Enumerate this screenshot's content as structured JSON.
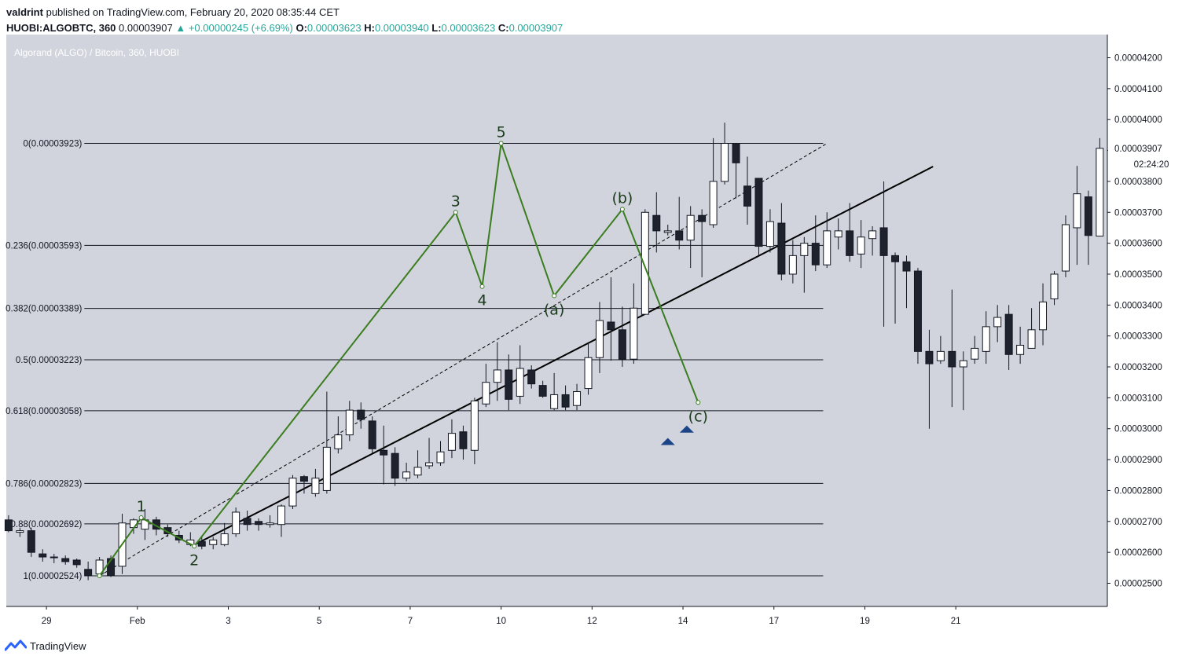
{
  "header": {
    "publisher": "valdrint",
    "published_text": "published on TradingView.com, February 20, 2020 08:35:44 CET",
    "symbol": "HUOBI:ALGOBTC, 360",
    "last": "0.00003907",
    "change": "+0.00000245 (+6.69%)",
    "o_label": "O:",
    "o": "0.00003623",
    "h_label": "H:",
    "h": "0.00003940",
    "l_label": "L:",
    "l": "0.00003623",
    "c_label": "C:",
    "c": "0.00003907"
  },
  "footer": {
    "brand": "TradingView"
  },
  "colors": {
    "background": "#d1d4dc",
    "up_candle": "#ffffff",
    "down_candle": "#1e222d",
    "wave": "#3a7d1f",
    "trendline": "#000000",
    "arrow": "#1c4587",
    "accent": "#26a69a"
  },
  "chart_data": {
    "type": "candlestick",
    "title": "Algorand (ALGO) / Bitcoin, 360, HUOBI",
    "price_labels": [
      "0.00004200",
      "0.00004100",
      "0.00004000",
      "0.00003900",
      "0.00003800",
      "0.00003700",
      "0.00003600",
      "0.00003500",
      "0.00003400",
      "0.00003300",
      "0.00003200",
      "0.00003100",
      "0.00003000",
      "0.00002900",
      "0.00002800",
      "0.00002700",
      "0.00002600",
      "0.00002500"
    ],
    "y_range": [
      2.425e-05,
      4.275e-05
    ],
    "date_labels": [
      {
        "label": "29",
        "t": 0
      },
      {
        "label": "Feb",
        "t": 12
      },
      {
        "label": "3",
        "t": 24
      },
      {
        "label": "5",
        "t": 36
      },
      {
        "label": "7",
        "t": 48
      },
      {
        "label": "10",
        "t": 60
      },
      {
        "label": "12",
        "t": 72
      },
      {
        "label": "14",
        "t": 84
      },
      {
        "label": "17",
        "t": 96
      },
      {
        "label": "19",
        "t": 108
      },
      {
        "label": "21",
        "t": 120
      }
    ],
    "x_range": [
      -5.3,
      140
    ],
    "current_price": "0.00003907",
    "countdown": "02:24:20",
    "fib_levels": [
      {
        "label": "0(0.00003923)",
        "price": 3.923e-05
      },
      {
        "label": "0.236(0.00003593)",
        "price": 3.593e-05
      },
      {
        "label": "0.382(0.00003389)",
        "price": 3.389e-05
      },
      {
        "label": "0.5(0.00003223)",
        "price": 3.223e-05
      },
      {
        "label": "0.618(0.00003058)",
        "price": 3.058e-05
      },
      {
        "label": "0.786(0.00002823)",
        "price": 2.823e-05
      },
      {
        "label": "0.88(0.00002692)",
        "price": 2.692e-05
      },
      {
        "label": "1(0.00002524)",
        "price": 2.524e-05
      }
    ],
    "fib_x_range": [
      5,
      102.5
    ],
    "candles": [
      [
        -5,
        2705,
        2670,
        2720,
        2665
      ],
      [
        -3.5,
        2665,
        2670,
        2680,
        2650
      ],
      [
        -2,
        2670,
        2600,
        2680,
        2585
      ],
      [
        -0.5,
        2595,
        2585,
        2610,
        2570
      ],
      [
        1,
        2585,
        2585,
        2595,
        2565
      ],
      [
        2.5,
        2580,
        2570,
        2590,
        2560
      ],
      [
        4,
        2575,
        2560,
        2580,
        2550
      ],
      [
        5.5,
        2545,
        2525,
        2570,
        2510
      ],
      [
        7,
        2530,
        2575,
        2585,
        2520
      ],
      [
        8.5,
        2580,
        2525,
        2590,
        2520
      ],
      [
        10,
        2555,
        2695,
        2725,
        2530
      ],
      [
        11.5,
        2680,
        2705,
        2710,
        2660
      ],
      [
        13,
        2675,
        2705,
        2740,
        2640
      ],
      [
        14.5,
        2705,
        2675,
        2715,
        2655
      ],
      [
        16,
        2680,
        2660,
        2690,
        2650
      ],
      [
        17.5,
        2655,
        2640,
        2670,
        2630
      ],
      [
        19,
        2625,
        2640,
        2665,
        2620
      ],
      [
        20.5,
        2635,
        2620,
        2650,
        2610
      ],
      [
        22,
        2625,
        2640,
        2650,
        2610
      ],
      [
        23.5,
        2625,
        2660,
        2695,
        2620
      ],
      [
        25,
        2660,
        2730,
        2745,
        2650
      ],
      [
        26.5,
        2710,
        2690,
        2735,
        2670
      ],
      [
        28,
        2700,
        2690,
        2710,
        2670
      ],
      [
        29.5,
        2690,
        2695,
        2720,
        2680
      ],
      [
        31,
        2690,
        2750,
        2755,
        2650
      ],
      [
        32.5,
        2750,
        2840,
        2850,
        2740
      ],
      [
        34,
        2845,
        2830,
        2850,
        2790
      ],
      [
        35.5,
        2790,
        2840,
        2870,
        2780
      ],
      [
        37,
        2800,
        2940,
        3120,
        2790
      ],
      [
        38.5,
        2935,
        2980,
        3040,
        2920
      ],
      [
        40,
        2980,
        3060,
        3090,
        2960
      ],
      [
        41.5,
        3060,
        3030,
        3085,
        3000
      ],
      [
        43,
        3025,
        2935,
        3040,
        2920
      ],
      [
        44.5,
        2930,
        2915,
        3010,
        2820
      ],
      [
        46,
        2920,
        2840,
        2940,
        2815
      ],
      [
        47.5,
        2840,
        2860,
        2890,
        2830
      ],
      [
        49,
        2850,
        2875,
        2930,
        2840
      ],
      [
        50.5,
        2880,
        2890,
        2970,
        2870
      ],
      [
        52,
        2890,
        2925,
        2960,
        2880
      ],
      [
        53.5,
        2930,
        2985,
        3030,
        2905
      ],
      [
        55,
        2990,
        2935,
        3010,
        2900
      ],
      [
        56.5,
        2930,
        3090,
        3100,
        2885
      ],
      [
        58,
        3080,
        3150,
        3210,
        3070
      ],
      [
        59.5,
        3150,
        3190,
        3280,
        3090
      ],
      [
        61,
        3190,
        3095,
        3240,
        3060
      ],
      [
        62.5,
        3105,
        3195,
        3270,
        3080
      ],
      [
        64,
        3190,
        3145,
        3205,
        3130
      ],
      [
        65.5,
        3140,
        3105,
        3155,
        3100
      ],
      [
        67,
        3065,
        3110,
        3180,
        3060
      ],
      [
        68.5,
        3110,
        3070,
        3140,
        3060
      ],
      [
        70,
        3075,
        3120,
        3145,
        3060
      ],
      [
        71.5,
        3130,
        3230,
        3275,
        3110
      ],
      [
        73,
        3230,
        3350,
        3410,
        3180
      ],
      [
        74.5,
        3345,
        3320,
        3490,
        3220
      ],
      [
        76,
        3320,
        3225,
        3395,
        3200
      ],
      [
        77.5,
        3225,
        3390,
        3470,
        3210
      ],
      [
        79,
        3370,
        3700,
        3710,
        3370
      ],
      [
        80.5,
        3690,
        3640,
        3765,
        3570
      ],
      [
        82,
        3635,
        3640,
        3660,
        3625
      ],
      [
        83.5,
        3640,
        3610,
        3750,
        3580
      ],
      [
        85,
        3610,
        3690,
        3720,
        3520
      ],
      [
        86.5,
        3690,
        3670,
        3710,
        3490
      ],
      [
        88,
        3660,
        3800,
        3940,
        3650
      ],
      [
        89.5,
        3800,
        3923,
        3990,
        3790
      ],
      [
        91,
        3923,
        3860,
        3920,
        3745
      ],
      [
        92.5,
        3785,
        3720,
        3880,
        3660
      ],
      [
        94,
        3810,
        3590,
        3810,
        3560
      ],
      [
        95.5,
        3590,
        3670,
        3710,
        3570
      ],
      [
        97,
        3665,
        3500,
        3730,
        3480
      ],
      [
        98.5,
        3500,
        3560,
        3610,
        3470
      ],
      [
        100,
        3560,
        3600,
        3620,
        3440
      ],
      [
        101.5,
        3600,
        3530,
        3690,
        3510
      ],
      [
        103,
        3530,
        3640,
        3700,
        3520
      ],
      [
        104.5,
        3620,
        3640,
        3680,
        3580
      ],
      [
        106,
        3640,
        3560,
        3730,
        3540
      ],
      [
        107.5,
        3565,
        3620,
        3675,
        3520
      ],
      [
        109,
        3615,
        3640,
        3655,
        3560
      ],
      [
        110.5,
        3650,
        3560,
        3800,
        3330
      ],
      [
        112,
        3560,
        3540,
        3570,
        3340
      ],
      [
        113.5,
        3540,
        3510,
        3560,
        3390
      ],
      [
        115,
        3510,
        3250,
        3520,
        3210
      ],
      [
        116.5,
        3250,
        3210,
        3320,
        3000
      ],
      [
        118,
        3220,
        3250,
        3300,
        3210
      ],
      [
        119.5,
        3250,
        3200,
        3450,
        3070
      ],
      [
        121,
        3200,
        3220,
        3250,
        3060
      ],
      [
        122.5,
        3225,
        3260,
        3300,
        3210
      ],
      [
        124,
        3250,
        3330,
        3380,
        3210
      ],
      [
        125.5,
        3330,
        3360,
        3400,
        3280
      ],
      [
        127,
        3370,
        3240,
        3400,
        3190
      ],
      [
        128.5,
        3240,
        3270,
        3330,
        3210
      ],
      [
        130,
        3260,
        3320,
        3390,
        3260
      ],
      [
        131.5,
        3320,
        3410,
        3470,
        3270
      ],
      [
        133,
        3420,
        3500,
        3510,
        3400
      ],
      [
        134.5,
        3510,
        3660,
        3690,
        3490
      ],
      [
        136,
        3650,
        3760,
        3850,
        3530
      ],
      [
        137.5,
        3750,
        3625,
        3770,
        3530
      ],
      [
        139,
        3623,
        3907,
        3940,
        3623
      ]
    ],
    "wave_points": [
      {
        "t": 7,
        "p": 2.524e-05,
        "label": ""
      },
      {
        "t": 12.5,
        "p": 2.712e-05,
        "label": "1"
      },
      {
        "t": 19.5,
        "p": 2.62e-05,
        "label": "2"
      },
      {
        "t": 54,
        "p": 3.7e-05,
        "label": "3"
      },
      {
        "t": 57.5,
        "p": 3.46e-05,
        "label": "4"
      },
      {
        "t": 60,
        "p": 3.923e-05,
        "label": "5"
      },
      {
        "t": 67,
        "p": 3.43e-05,
        "label": "(a)"
      },
      {
        "t": 76,
        "p": 3.71e-05,
        "label": "(b)"
      },
      {
        "t": 86,
        "p": 3.085e-05,
        "label": "(c)"
      }
    ],
    "trendlines": [
      {
        "from": [
          19.5,
          2.624e-05
        ],
        "to": [
          117,
          3.848e-05
        ],
        "style": "solid"
      },
      {
        "from": [
          7,
          2.524e-05
        ],
        "to": [
          103,
          3.923e-05
        ],
        "style": "dashed"
      }
    ],
    "signal_arrows": [
      {
        "t": 82,
        "p": 2.96e-05
      },
      {
        "t": 84.5,
        "p": 3e-05
      }
    ]
  }
}
